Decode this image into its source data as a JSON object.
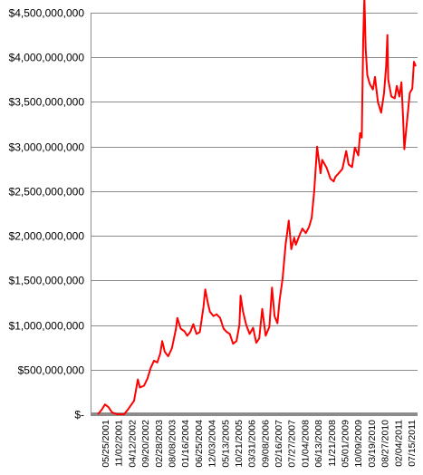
{
  "chart_data": {
    "type": "line",
    "title": "",
    "xlabel": "",
    "ylabel": "",
    "ylim": [
      0,
      4500000000
    ],
    "grid": true,
    "legend": "none",
    "y_tick_labels": [
      "$-",
      "$500,000,000",
      "$1,000,000,000",
      "$1,500,000,000",
      "$2,000,000,000",
      "$2,500,000,000",
      "$3,000,000,000",
      "$3,500,000,000",
      "$4,000,000,000",
      "$4,500,000,000"
    ],
    "y_tick_values": [
      0,
      500000000,
      1000000000,
      1500000000,
      2000000000,
      2500000000,
      3000000000,
      3500000000,
      4000000000,
      4500000000
    ],
    "x_tick_labels": [
      "05/25/2001",
      "11/02/2001",
      "04/12/2002",
      "09/20/2002",
      "02/28/2003",
      "08/08/2003",
      "01/16/2004",
      "06/25/2004",
      "12/03/2004",
      "05/13/2005",
      "10/21/2005",
      "03/31/2006",
      "09/08/2006",
      "02/16/2007",
      "07/27/2007",
      "01/04/2008",
      "06/13/2008",
      "11/21/2008",
      "05/01/2009",
      "10/09/2009",
      "03/19/2010",
      "08/27/2010",
      "02/04/2011",
      "07/15/2011"
    ],
    "x_range": [
      "2001-05-25",
      "2012-01-06"
    ],
    "series": [
      {
        "color": "#ff0000",
        "points": [
          [
            "2001-05-25",
            0
          ],
          [
            "2001-07-10",
            50000000
          ],
          [
            "2001-08-20",
            110000000
          ],
          [
            "2001-10-01",
            80000000
          ],
          [
            "2001-11-15",
            20000000
          ],
          [
            "2002-01-15",
            0
          ],
          [
            "2002-04-12",
            0
          ],
          [
            "2002-06-01",
            60000000
          ],
          [
            "2002-08-10",
            150000000
          ],
          [
            "2002-09-25",
            390000000
          ],
          [
            "2002-10-20",
            300000000
          ],
          [
            "2002-12-10",
            320000000
          ],
          [
            "2003-01-20",
            400000000
          ],
          [
            "2003-03-01",
            520000000
          ],
          [
            "2003-04-10",
            600000000
          ],
          [
            "2003-05-20",
            580000000
          ],
          [
            "2003-06-25",
            680000000
          ],
          [
            "2003-07-20",
            820000000
          ],
          [
            "2003-08-20",
            700000000
          ],
          [
            "2003-10-01",
            650000000
          ],
          [
            "2003-11-15",
            740000000
          ],
          [
            "2004-01-01",
            950000000
          ],
          [
            "2004-01-20",
            1080000000
          ],
          [
            "2004-03-01",
            960000000
          ],
          [
            "2004-04-15",
            930000000
          ],
          [
            "2004-05-20",
            880000000
          ],
          [
            "2004-06-25",
            920000000
          ],
          [
            "2004-08-01",
            1010000000
          ],
          [
            "2004-09-10",
            900000000
          ],
          [
            "2004-10-20",
            920000000
          ],
          [
            "2004-12-03",
            1200000000
          ],
          [
            "2004-12-25",
            1400000000
          ],
          [
            "2005-01-25",
            1250000000
          ],
          [
            "2005-02-20",
            1150000000
          ],
          [
            "2005-04-05",
            1100000000
          ],
          [
            "2005-05-13",
            1120000000
          ],
          [
            "2005-06-25",
            1080000000
          ],
          [
            "2005-08-05",
            960000000
          ],
          [
            "2005-09-15",
            920000000
          ],
          [
            "2005-10-21",
            900000000
          ],
          [
            "2005-11-30",
            790000000
          ],
          [
            "2006-01-10",
            820000000
          ],
          [
            "2006-02-15",
            1000000000
          ],
          [
            "2006-03-01",
            1330000000
          ],
          [
            "2006-03-31",
            1150000000
          ],
          [
            "2006-05-10",
            1000000000
          ],
          [
            "2006-06-20",
            900000000
          ],
          [
            "2006-08-01",
            970000000
          ],
          [
            "2006-09-08",
            800000000
          ],
          [
            "2006-10-15",
            850000000
          ],
          [
            "2006-11-20",
            1180000000
          ],
          [
            "2007-01-01",
            880000000
          ],
          [
            "2007-02-16",
            980000000
          ],
          [
            "2007-03-20",
            1420000000
          ],
          [
            "2007-04-20",
            1100000000
          ],
          [
            "2007-05-25",
            1020000000
          ],
          [
            "2007-06-20",
            1280000000
          ],
          [
            "2007-07-27",
            1520000000
          ],
          [
            "2007-09-01",
            1900000000
          ],
          [
            "2007-10-10",
            2170000000
          ],
          [
            "2007-11-10",
            1850000000
          ],
          [
            "2007-12-15",
            1980000000
          ],
          [
            "2008-01-04",
            1900000000
          ],
          [
            "2008-02-15",
            2000000000
          ],
          [
            "2008-03-25",
            2080000000
          ],
          [
            "2008-05-05",
            2030000000
          ],
          [
            "2008-06-13",
            2100000000
          ],
          [
            "2008-07-15",
            2200000000
          ],
          [
            "2008-08-15",
            2500000000
          ],
          [
            "2008-09-20",
            3000000000
          ],
          [
            "2008-11-01",
            2700000000
          ],
          [
            "2008-11-21",
            2850000000
          ],
          [
            "2009-01-15",
            2760000000
          ],
          [
            "2009-03-01",
            2640000000
          ],
          [
            "2009-04-10",
            2610000000
          ],
          [
            "2009-05-01",
            2660000000
          ],
          [
            "2009-06-10",
            2700000000
          ],
          [
            "2009-07-25",
            2750000000
          ],
          [
            "2009-09-10",
            2950000000
          ],
          [
            "2009-10-09",
            2800000000
          ],
          [
            "2009-11-20",
            2770000000
          ],
          [
            "2009-12-25",
            2990000000
          ],
          [
            "2010-02-05",
            2900000000
          ],
          [
            "2010-02-25",
            3150000000
          ],
          [
            "2010-03-19",
            3100000000
          ],
          [
            "2010-04-05",
            4200000000
          ],
          [
            "2010-04-20",
            4680000000
          ],
          [
            "2010-05-05",
            4100000000
          ],
          [
            "2010-05-25",
            3800000000
          ],
          [
            "2010-06-25",
            3700000000
          ],
          [
            "2010-08-01",
            3640000000
          ],
          [
            "2010-08-27",
            3780000000
          ],
          [
            "2010-10-01",
            3500000000
          ],
          [
            "2010-11-10",
            3380000000
          ],
          [
            "2010-12-15",
            3600000000
          ],
          [
            "2011-01-10",
            3900000000
          ],
          [
            "2011-01-25",
            4250000000
          ],
          [
            "2011-02-04",
            3750000000
          ],
          [
            "2011-03-15",
            3560000000
          ],
          [
            "2011-04-25",
            3540000000
          ],
          [
            "2011-05-20",
            3680000000
          ],
          [
            "2011-06-20",
            3560000000
          ],
          [
            "2011-07-15",
            3720000000
          ],
          [
            "2011-08-05",
            3300000000
          ],
          [
            "2011-08-20",
            2970000000
          ],
          [
            "2011-09-25",
            3320000000
          ],
          [
            "2011-10-25",
            3600000000
          ],
          [
            "2011-11-25",
            3650000000
          ],
          [
            "2011-12-15",
            3950000000
          ],
          [
            "2012-01-06",
            3900000000
          ]
        ]
      }
    ]
  }
}
